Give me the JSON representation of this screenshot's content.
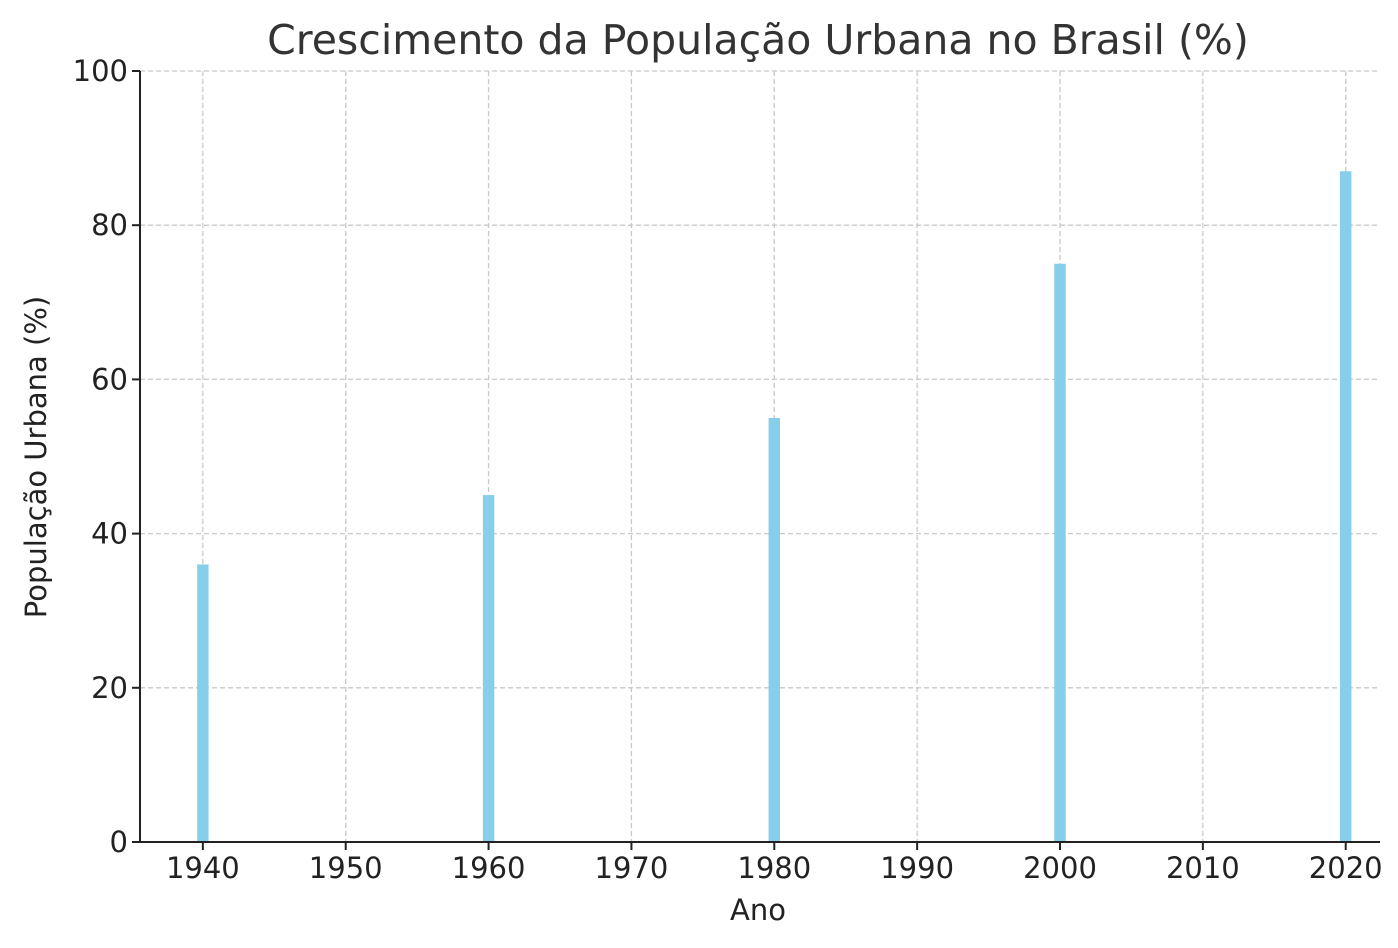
{
  "chart_data": {
    "type": "bar",
    "title": "Crescimento da População Urbana no Brasil (%)",
    "xlabel": "Ano",
    "ylabel": "População Urbana (%)",
    "categories": [
      1940,
      1960,
      1980,
      2000,
      2020
    ],
    "values": [
      36,
      45,
      55,
      75,
      87
    ],
    "bar_width_years": 0.8,
    "xlim": [
      1935.6,
      2022.4
    ],
    "ylim": [
      0,
      100
    ],
    "xticks": [
      1940,
      1950,
      1960,
      1970,
      1980,
      1990,
      2000,
      2010,
      2020
    ],
    "yticks": [
      0,
      20,
      40,
      60,
      80,
      100
    ],
    "grid": true,
    "bar_color": "#87ceeb"
  }
}
